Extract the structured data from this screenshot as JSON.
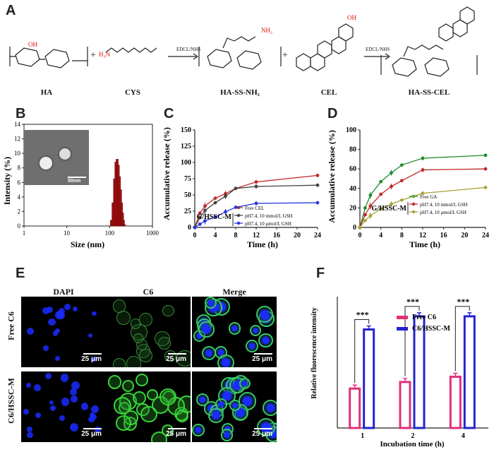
{
  "panels": {
    "A": "A",
    "B": "B",
    "C": "C",
    "D": "D",
    "E": "E",
    "F": "F"
  },
  "scheme": {
    "labels": [
      "HA",
      "CYS",
      "HA-SS-NH₂",
      "CEL",
      "HA-SS-CEL"
    ],
    "reagent": "EDCL/NHS",
    "plus": "+"
  },
  "chart_b": {
    "type": "bar",
    "ylabel": "Intensity (%)",
    "xlabel": "Size (nm)",
    "xticks": [
      "1",
      "10",
      "100",
      "1000"
    ],
    "yticks": [
      "0",
      "2",
      "4",
      "6",
      "8",
      "10",
      "12",
      "14"
    ],
    "inset_scale": "50nm",
    "x": [
      110,
      120,
      130,
      140,
      150,
      160,
      170,
      180,
      190,
      200,
      210,
      220
    ],
    "values": [
      0.8,
      3.2,
      6.5,
      8.8,
      9.2,
      8.4,
      6.8,
      5.0,
      3.2,
      1.8,
      0.8,
      0.2
    ]
  },
  "chart_c": {
    "type": "line",
    "xlabel": "Time (h)",
    "ylabel": "Accumulative release (%)",
    "xticks": [
      "0",
      "4",
      "8",
      "12",
      "16",
      "20",
      "24"
    ],
    "yticks": [
      "0",
      "25",
      "50",
      "75",
      "100",
      "125",
      "150"
    ],
    "annotation": "G/HSSC-M",
    "x": [
      0,
      1,
      2,
      4,
      6,
      8,
      12,
      24
    ],
    "series": [
      {
        "name": "Free CEL",
        "color": "#c0282b",
        "values": [
          0,
          22,
          33,
          45,
          52,
          60,
          70,
          80
        ]
      },
      {
        "name": "pH7.4, 10 mmol/L GSH",
        "color": "#444444",
        "values": [
          0,
          15,
          26,
          38,
          48,
          60,
          63,
          65
        ]
      },
      {
        "name": "pH7.4, 10 μmol/L GSH",
        "color": "#2b36d9",
        "values": [
          0,
          5,
          10,
          16,
          24,
          31,
          37,
          38
        ]
      }
    ]
  },
  "chart_d": {
    "type": "line",
    "xlabel": "Time (h)",
    "ylabel": "Accumulative release (%)",
    "xticks": [
      "0",
      "4",
      "8",
      "12",
      "16",
      "20",
      "24"
    ],
    "yticks": [
      "0",
      "20",
      "40",
      "60",
      "80",
      "100"
    ],
    "annotation": "G/HSSC-M",
    "x": [
      0,
      1,
      2,
      4,
      6,
      8,
      12,
      24
    ],
    "series": [
      {
        "name": "Free GA",
        "color": "#1e8b2c",
        "values": [
          0,
          20,
          33,
          47,
          56,
          64,
          71,
          74
        ]
      },
      {
        "name": "pH7.4, 10 mmol/L GSH",
        "color": "#c0282b",
        "values": [
          0,
          13,
          22,
          34,
          42,
          48,
          59,
          60
        ]
      },
      {
        "name": "pH7.4, 10 μmol/L GSH",
        "color": "#a9a43a",
        "values": [
          0,
          7,
          12,
          19,
          24,
          28,
          35,
          41
        ]
      }
    ]
  },
  "panel_e": {
    "columns": [
      "DAPI",
      "C6",
      "Merge"
    ],
    "rows": [
      "Free C6",
      "C6/HSSC-M"
    ],
    "scale": "25 μm"
  },
  "chart_f": {
    "type": "bar",
    "ylabel": "Relative fluorescence intensity",
    "xlabel": "Incubation time (h)",
    "categories": [
      "1",
      "2",
      "4"
    ],
    "series": [
      {
        "name": "Free C6",
        "color": "#e0307a",
        "values": [
          30,
          35,
          39
        ]
      },
      {
        "name": "C6/HSSC-M",
        "color": "#2424d0",
        "values": [
          75,
          85,
          85
        ]
      }
    ],
    "sig": [
      "***",
      "***",
      "***"
    ]
  }
}
